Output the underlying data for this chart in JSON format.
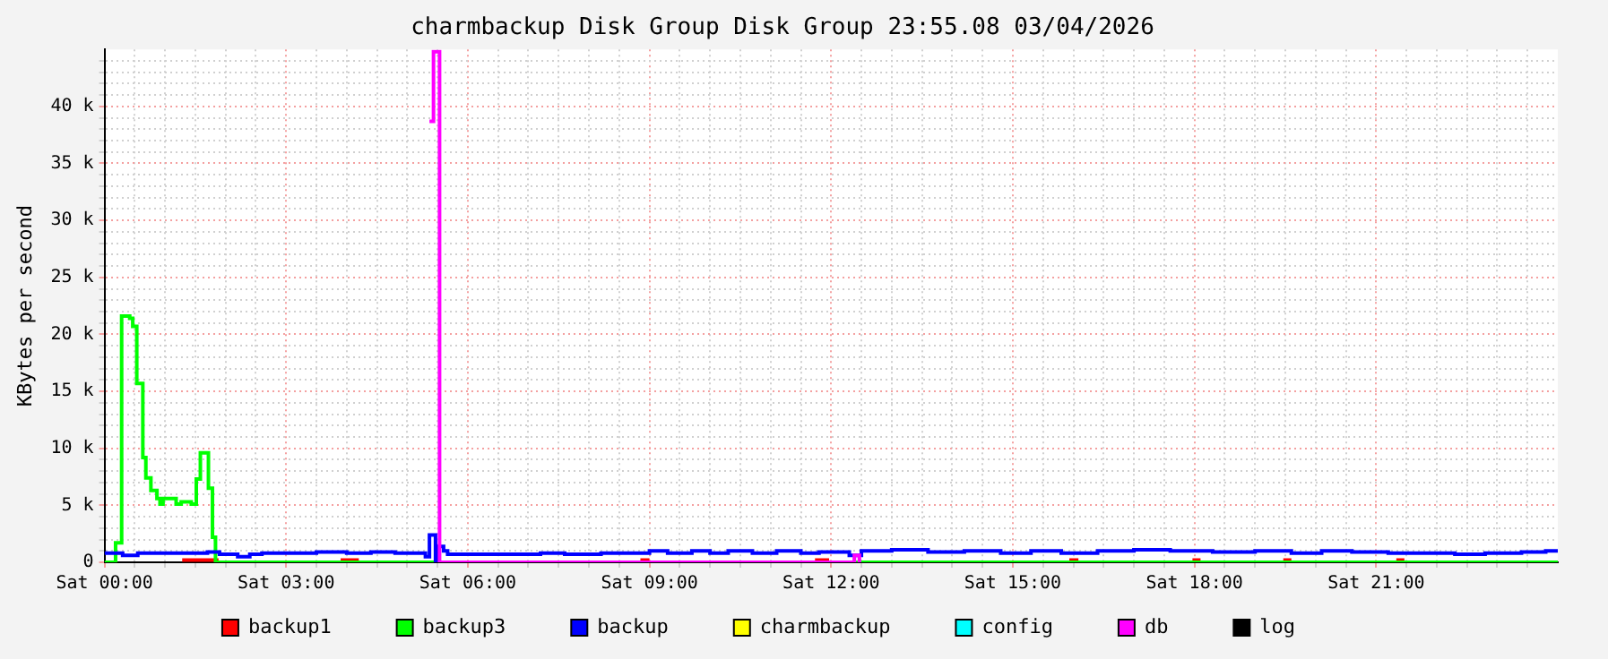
{
  "chart_data": {
    "type": "step",
    "title": "charmbackup Disk Group Disk Group 23:55.08 03/04/2026",
    "ylabel": "KBytes per second",
    "xlim": [
      "2026-04-04T00:00",
      "2026-04-05T00:00"
    ],
    "ylim": [
      0,
      45000
    ],
    "xticks": [
      {
        "value": "2026-04-04T00:00",
        "label": "Sat 00:00"
      },
      {
        "value": "2026-04-04T00:30",
        "label": null
      },
      {
        "value": "2026-04-04T01:00",
        "label": null
      },
      {
        "value": "2026-04-04T01:30",
        "label": null
      },
      {
        "value": "2026-04-04T02:00",
        "label": null
      },
      {
        "value": "2026-04-04T02:30",
        "label": null
      },
      {
        "value": "2026-04-04T03:00",
        "label": "Sat 03:00"
      },
      {
        "value": "2026-04-04T03:30",
        "label": null
      },
      {
        "value": "2026-04-04T04:00",
        "label": null
      },
      {
        "value": "2026-04-04T04:30",
        "label": null
      },
      {
        "value": "2026-04-04T05:00",
        "label": null
      },
      {
        "value": "2026-04-04T05:30",
        "label": null
      },
      {
        "value": "2026-04-04T06:00",
        "label": "Sat 06:00"
      },
      {
        "value": "2026-04-04T06:30",
        "label": null
      },
      {
        "value": "2026-04-04T07:00",
        "label": null
      },
      {
        "value": "2026-04-04T07:30",
        "label": null
      },
      {
        "value": "2026-04-04T08:00",
        "label": null
      },
      {
        "value": "2026-04-04T08:30",
        "label": null
      },
      {
        "value": "2026-04-04T09:00",
        "label": "Sat 09:00"
      },
      {
        "value": "2026-04-04T09:30",
        "label": null
      },
      {
        "value": "2026-04-04T10:00",
        "label": null
      },
      {
        "value": "2026-04-04T10:30",
        "label": null
      },
      {
        "value": "2026-04-04T11:00",
        "label": null
      },
      {
        "value": "2026-04-04T11:30",
        "label": null
      },
      {
        "value": "2026-04-04T12:00",
        "label": "Sat 12:00"
      },
      {
        "value": "2026-04-04T12:30",
        "label": null
      },
      {
        "value": "2026-04-04T13:00",
        "label": null
      },
      {
        "value": "2026-04-04T13:30",
        "label": null
      },
      {
        "value": "2026-04-04T14:00",
        "label": null
      },
      {
        "value": "2026-04-04T14:30",
        "label": null
      },
      {
        "value": "2026-04-04T15:00",
        "label": "Sat 15:00"
      },
      {
        "value": "2026-04-04T15:30",
        "label": null
      },
      {
        "value": "2026-04-04T16:00",
        "label": null
      },
      {
        "value": "2026-04-04T16:30",
        "label": null
      },
      {
        "value": "2026-04-04T17:00",
        "label": null
      },
      {
        "value": "2026-04-04T17:30",
        "label": null
      },
      {
        "value": "2026-04-04T18:00",
        "label": "Sat 18:00"
      },
      {
        "value": "2026-04-04T18:30",
        "label": null
      },
      {
        "value": "2026-04-04T19:00",
        "label": null
      },
      {
        "value": "2026-04-04T19:30",
        "label": null
      },
      {
        "value": "2026-04-04T20:00",
        "label": null
      },
      {
        "value": "2026-04-04T20:30",
        "label": null
      },
      {
        "value": "2026-04-04T21:00",
        "label": "Sat 21:00"
      },
      {
        "value": "2026-04-04T21:30",
        "label": null
      },
      {
        "value": "2026-04-04T22:00",
        "label": null
      },
      {
        "value": "2026-04-04T22:30",
        "label": null
      },
      {
        "value": "2026-04-04T23:00",
        "label": null
      },
      {
        "value": "2026-04-04T23:30",
        "label": null
      }
    ],
    "yticks": [
      {
        "value": 0,
        "label": "0"
      },
      {
        "value": 1000,
        "label": null
      },
      {
        "value": 2000,
        "label": null
      },
      {
        "value": 3000,
        "label": null
      },
      {
        "value": 4000,
        "label": null
      },
      {
        "value": 5000,
        "label": "5 k"
      },
      {
        "value": 6000,
        "label": null
      },
      {
        "value": 7000,
        "label": null
      },
      {
        "value": 8000,
        "label": null
      },
      {
        "value": 9000,
        "label": null
      },
      {
        "value": 10000,
        "label": "10 k"
      },
      {
        "value": 11000,
        "label": null
      },
      {
        "value": 12000,
        "label": null
      },
      {
        "value": 13000,
        "label": null
      },
      {
        "value": 14000,
        "label": null
      },
      {
        "value": 15000,
        "label": "15 k"
      },
      {
        "value": 16000,
        "label": null
      },
      {
        "value": 17000,
        "label": null
      },
      {
        "value": 18000,
        "label": null
      },
      {
        "value": 19000,
        "label": null
      },
      {
        "value": 20000,
        "label": "20 k"
      },
      {
        "value": 21000,
        "label": null
      },
      {
        "value": 22000,
        "label": null
      },
      {
        "value": 23000,
        "label": null
      },
      {
        "value": 24000,
        "label": null
      },
      {
        "value": 25000,
        "label": "25 k"
      },
      {
        "value": 26000,
        "label": null
      },
      {
        "value": 27000,
        "label": null
      },
      {
        "value": 28000,
        "label": null
      },
      {
        "value": 29000,
        "label": null
      },
      {
        "value": 30000,
        "label": "30 k"
      },
      {
        "value": 31000,
        "label": null
      },
      {
        "value": 32000,
        "label": null
      },
      {
        "value": 33000,
        "label": null
      },
      {
        "value": 34000,
        "label": null
      },
      {
        "value": 35000,
        "label": "35 k"
      },
      {
        "value": 36000,
        "label": null
      },
      {
        "value": 37000,
        "label": null
      },
      {
        "value": 38000,
        "label": null
      },
      {
        "value": 39000,
        "label": null
      },
      {
        "value": 40000,
        "label": "40 k"
      },
      {
        "value": 41000,
        "label": null
      },
      {
        "value": 42000,
        "label": null
      },
      {
        "value": 43000,
        "label": null
      },
      {
        "value": 44000,
        "label": null
      }
    ],
    "grid": true,
    "legend": "bottom",
    "series": [
      {
        "name": "backup1",
        "color": "#ff0000",
        "x": [
          "2026-04-04T01:17",
          "2026-04-04T01:53",
          "2026-04-04T02:00",
          "2026-04-04T03:54",
          "2026-04-04T04:12",
          "2026-04-04T04:20",
          "2026-04-04T08:51",
          "2026-04-04T09:00",
          "2026-04-04T09:10",
          "2026-04-04T11:44",
          "2026-04-04T11:58",
          "2026-04-04T12:05",
          "2026-04-04T15:56",
          "2026-04-04T16:05",
          "2026-04-04T16:10",
          "2026-04-04T17:58",
          "2026-04-04T18:06",
          "2026-04-04T18:10",
          "2026-04-04T19:28",
          "2026-04-04T19:36",
          "2026-04-04T19:40",
          "2026-04-04T21:20",
          "2026-04-04T21:28"
        ],
        "values": [
          200,
          200,
          null,
          200,
          200,
          null,
          200,
          200,
          null,
          200,
          200,
          null,
          200,
          200,
          null,
          200,
          200,
          null,
          200,
          200,
          null,
          200,
          200
        ]
      },
      {
        "name": "backup3",
        "color": "#00ff00",
        "x": [
          "2026-04-04T00:00",
          "2026-04-04T00:11",
          "2026-04-04T00:17",
          "2026-04-04T00:25",
          "2026-04-04T00:28",
          "2026-04-04T00:32",
          "2026-04-04T00:38",
          "2026-04-04T00:41",
          "2026-04-04T00:46",
          "2026-04-04T00:52",
          "2026-04-04T00:55",
          "2026-04-04T00:58",
          "2026-04-04T01:11",
          "2026-04-04T01:16",
          "2026-04-04T01:26",
          "2026-04-04T01:31",
          "2026-04-04T01:35",
          "2026-04-04T01:43",
          "2026-04-04T01:47",
          "2026-04-04T01:50",
          "2026-04-05T00:00"
        ],
        "values": [
          0,
          1700,
          21600,
          21400,
          20700,
          15700,
          9200,
          7400,
          6300,
          5600,
          5100,
          5600,
          5100,
          5300,
          5100,
          7300,
          9600,
          6500,
          2200,
          0,
          0
        ]
      },
      {
        "name": "backup",
        "color": "#0000ff",
        "x": [
          "2026-04-04T00:00",
          "2026-04-04T00:18",
          "2026-04-04T00:33",
          "2026-04-04T01:42",
          "2026-04-04T01:54",
          "2026-04-04T02:12",
          "2026-04-04T02:24",
          "2026-04-04T02:36",
          "2026-04-04T03:30",
          "2026-04-04T04:00",
          "2026-04-04T04:24",
          "2026-04-04T04:48",
          "2026-04-04T05:18",
          "2026-04-04T05:22",
          "2026-04-04T05:28",
          "2026-04-04T05:31",
          "2026-04-04T05:36",
          "2026-04-04T05:40",
          "2026-04-04T07:12",
          "2026-04-04T07:36",
          "2026-04-04T08:12",
          "2026-04-04T09:00",
          "2026-04-04T09:18",
          "2026-04-04T09:42",
          "2026-04-04T10:00",
          "2026-04-04T10:18",
          "2026-04-04T10:42",
          "2026-04-04T11:06",
          "2026-04-04T11:30",
          "2026-04-04T11:48",
          "2026-04-04T12:18",
          "2026-04-04T12:30",
          "2026-04-04T13:00",
          "2026-04-04T13:36",
          "2026-04-04T14:12",
          "2026-04-04T14:48",
          "2026-04-04T15:18",
          "2026-04-04T15:48",
          "2026-04-04T16:24",
          "2026-04-04T17:00",
          "2026-04-04T17:36",
          "2026-04-04T18:18",
          "2026-04-04T19:00",
          "2026-04-04T19:36",
          "2026-04-04T20:06",
          "2026-04-04T20:36",
          "2026-04-04T21:12",
          "2026-04-04T22:18",
          "2026-04-04T22:48",
          "2026-04-04T23:24",
          "2026-04-04T23:48",
          "2026-04-05T00:00"
        ],
        "values": [
          800,
          600,
          800,
          900,
          700,
          500,
          700,
          800,
          900,
          800,
          900,
          800,
          500,
          2400,
          0,
          1400,
          1000,
          700,
          800,
          700,
          800,
          1000,
          800,
          1000,
          800,
          1000,
          800,
          1000,
          800,
          900,
          600,
          1000,
          1100,
          900,
          1000,
          800,
          1000,
          800,
          1000,
          1100,
          1000,
          900,
          1000,
          800,
          1000,
          900,
          800,
          700,
          800,
          900,
          1000,
          1000
        ]
      },
      {
        "name": "charmbackup",
        "color": "#ffff00"
      },
      {
        "name": "config",
        "color": "#00ffff"
      },
      {
        "name": "db",
        "color": "#ff00ff",
        "x": [
          "2026-04-04T05:22",
          "2026-04-04T05:26",
          "2026-04-04T05:32",
          "2026-04-04T12:23",
          "2026-04-04T12:28"
        ],
        "values": [
          38700,
          44800,
          0,
          600,
          0
        ]
      },
      {
        "name": "log",
        "color": "#000000"
      }
    ]
  }
}
